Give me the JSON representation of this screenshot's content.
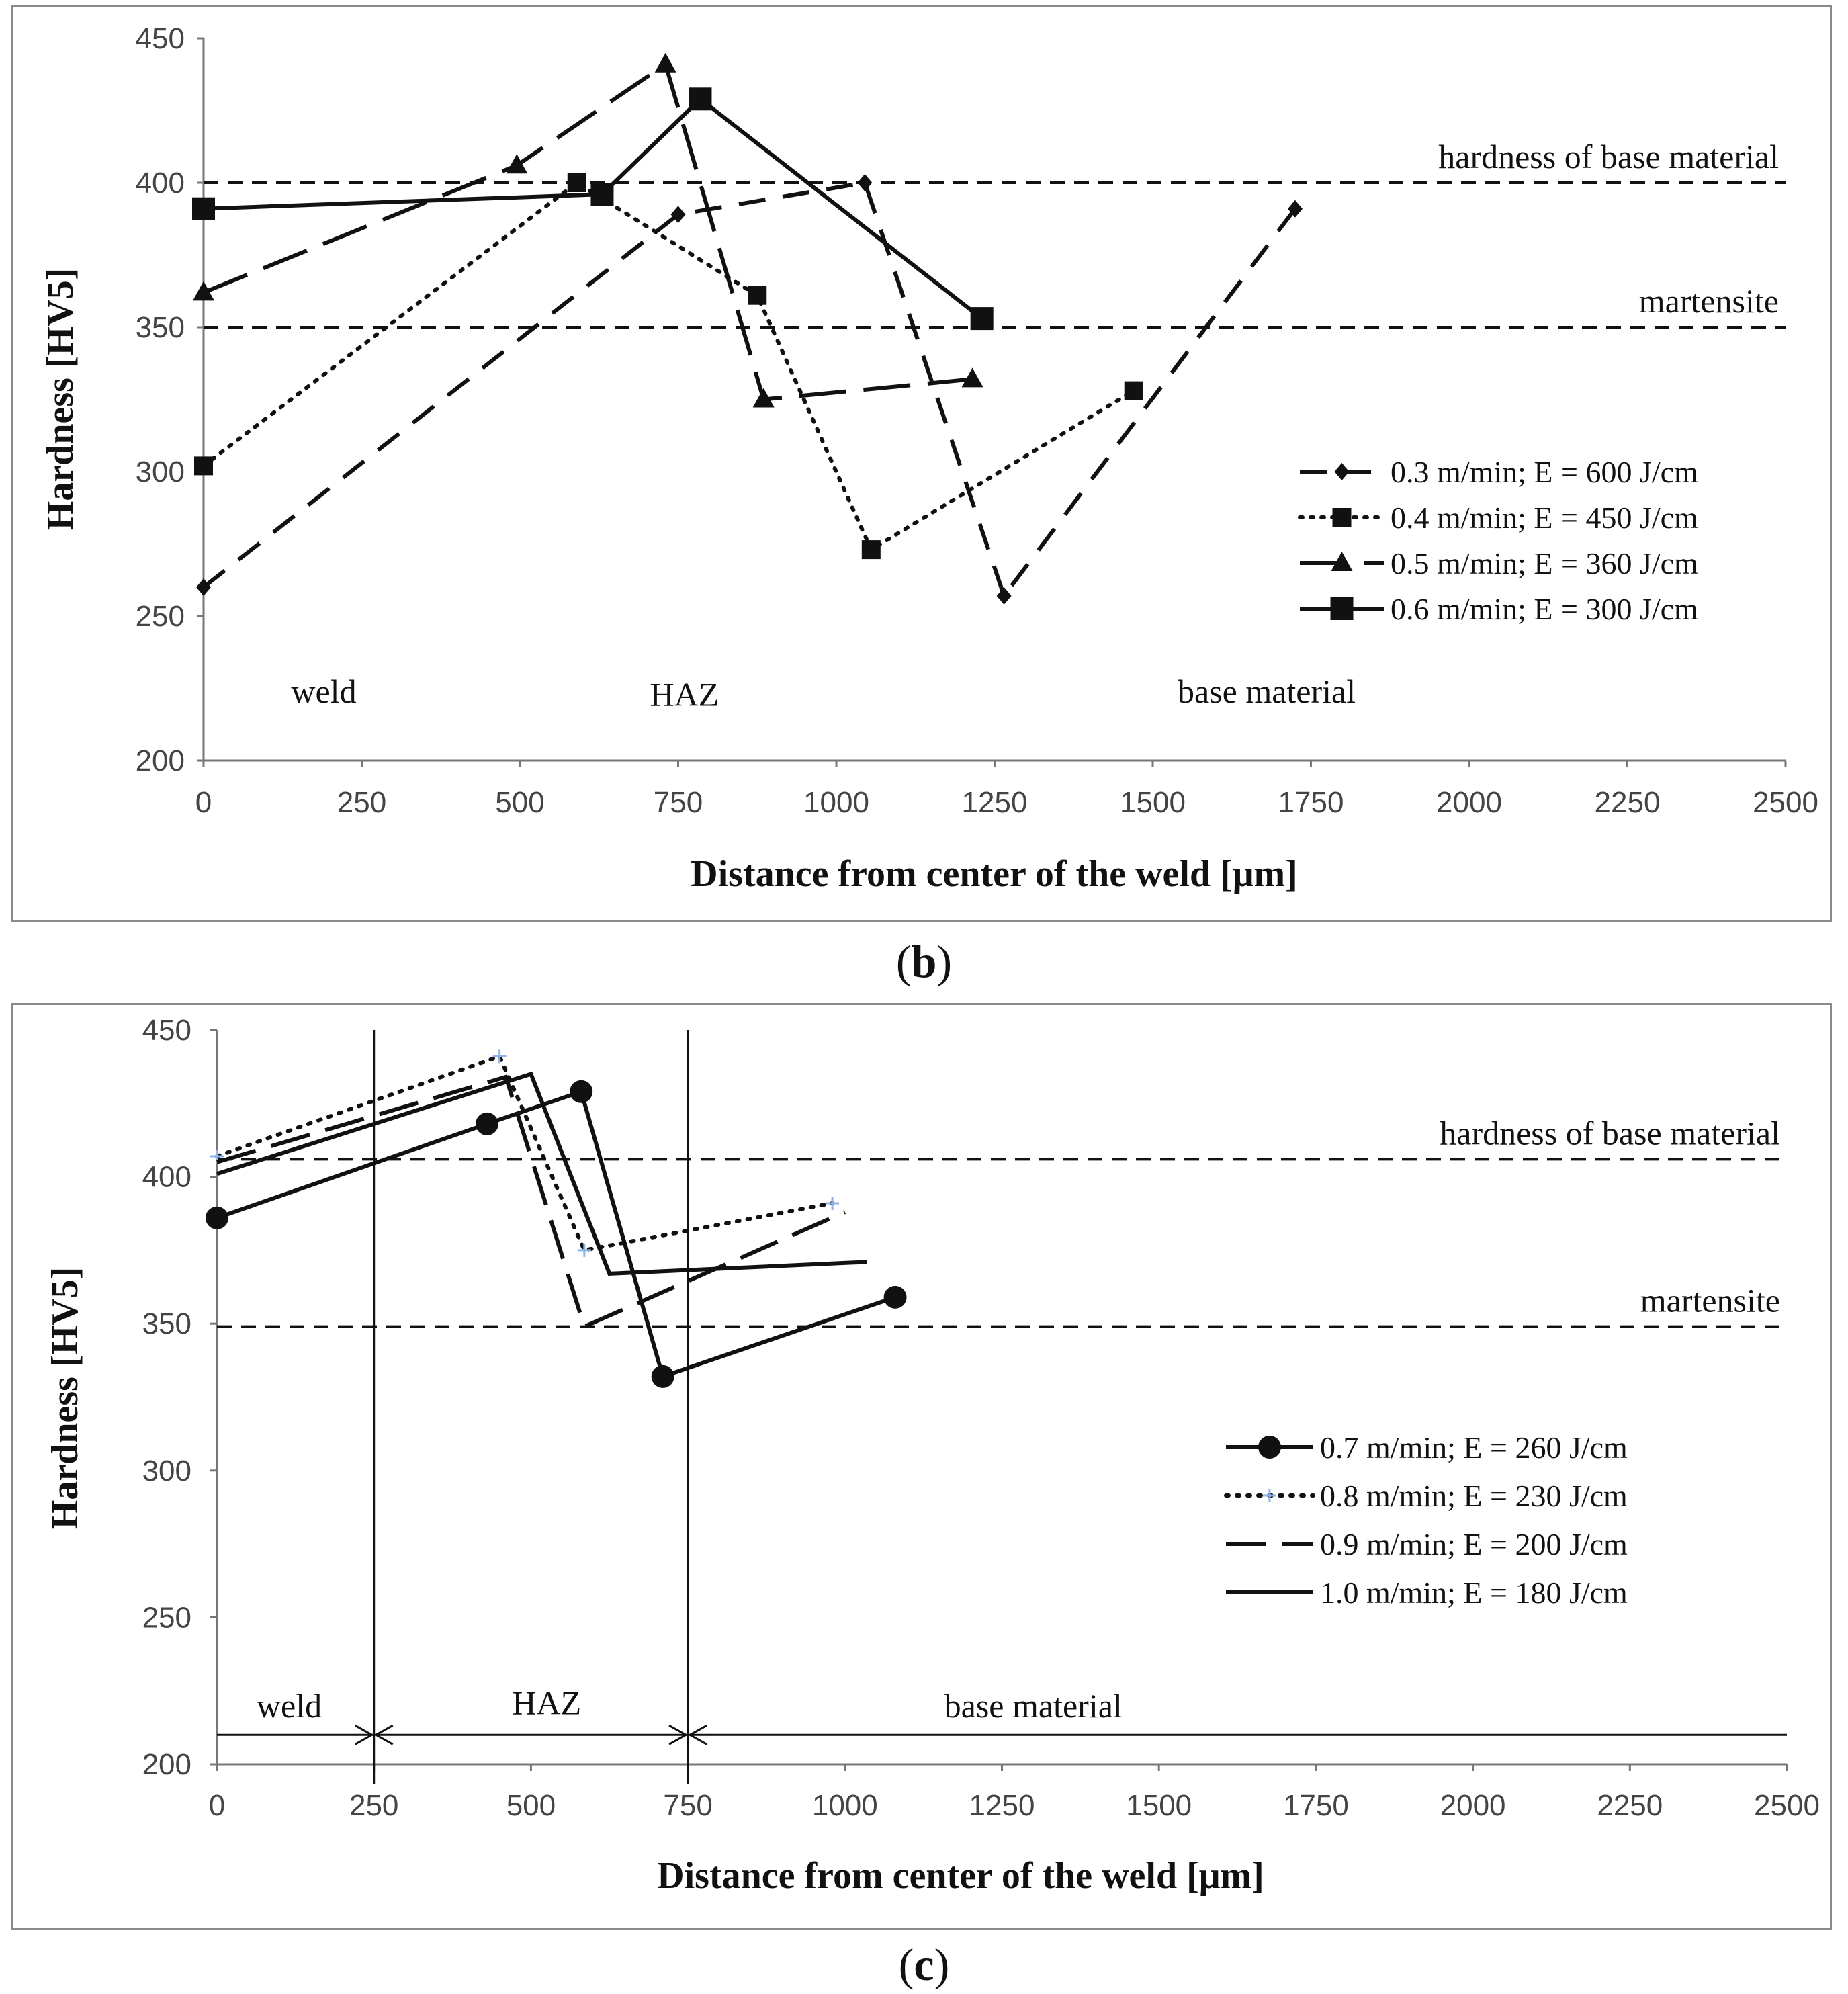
{
  "chart_data": [
    {
      "id": "b",
      "type": "line",
      "caption_letter": "b",
      "xlabel": "Distance from center of the weld [μm]",
      "ylabel": "Hardness [HV5]",
      "xlim": [
        0,
        2500
      ],
      "ylim": [
        200,
        450
      ],
      "xticks": [
        "0",
        "250",
        "500",
        "750",
        "1000",
        "1250",
        "1500",
        "1750",
        "2000",
        "2250",
        "2500"
      ],
      "yticks": [
        "200",
        "250",
        "300",
        "350",
        "400",
        "450"
      ],
      "reference_lines": [
        {
          "label": "hardness of base material",
          "value": 400
        },
        {
          "label": "martensite",
          "value": 350
        }
      ],
      "zone_labels": [
        {
          "label": "weld",
          "x": 190,
          "y": 220
        },
        {
          "label": "HAZ",
          "x": 760,
          "y": 219
        },
        {
          "label": "base material",
          "x": 1680,
          "y": 220
        }
      ],
      "series": [
        {
          "name": "0.3 m/min; E = 600 J/cm",
          "marker": "diamond",
          "dash": "40,26",
          "x": [
            0,
            750,
            1045,
            1265,
            1725
          ],
          "y": [
            260,
            389,
            400,
            257,
            391
          ]
        },
        {
          "name": "0.4 m/min; E = 450 J/cm",
          "marker": "square",
          "dash": "4,12",
          "x": [
            0,
            590,
            875,
            1055,
            1470
          ],
          "y": [
            302,
            400,
            361,
            273,
            328
          ]
        },
        {
          "name": "0.5 m/min; E = 360 J/cm",
          "marker": "triangle",
          "dash": "70,26",
          "x": [
            0,
            495,
            730,
            885,
            1215
          ],
          "y": [
            362,
            406,
            441,
            325,
            332
          ]
        },
        {
          "name": "0.6 m/min; E = 300 J/cm",
          "marker": "square-large",
          "dash": "",
          "x": [
            0,
            630,
            785,
            1230
          ],
          "y": [
            391,
            396,
            429,
            353
          ]
        }
      ]
    },
    {
      "id": "c",
      "type": "line",
      "caption_letter": "c",
      "xlabel": "Distance from center of the weld [μm]",
      "ylabel": "Hardness [HV5]",
      "xlim": [
        0,
        2500
      ],
      "ylim": [
        200,
        450
      ],
      "xticks": [
        "0",
        "250",
        "500",
        "750",
        "1000",
        "1250",
        "1500",
        "1750",
        "2000",
        "2250",
        "2500"
      ],
      "yticks": [
        "200",
        "250",
        "300",
        "350",
        "400",
        "450"
      ],
      "reference_lines": [
        {
          "label": "hardness of base material",
          "value": 406
        },
        {
          "label": "martensite",
          "value": 349
        }
      ],
      "zone_boundaries": [
        250,
        750
      ],
      "zone_labels": [
        {
          "label": "weld",
          "x": 115,
          "y": 216
        },
        {
          "label": "HAZ",
          "x": 525,
          "y": 217
        },
        {
          "label": "base material",
          "x": 1300,
          "y": 216
        }
      ],
      "zone_arrow_y": 210,
      "series": [
        {
          "name": "0.7 m/min; E = 260 J/cm",
          "marker": "circle",
          "dash": "",
          "x": [
            0,
            430,
            580,
            710,
            1080
          ],
          "y": [
            386,
            418,
            429,
            332,
            359
          ]
        },
        {
          "name": "0.8 m/min; E = 230 J/cm",
          "marker": "plus",
          "dash": "4,12",
          "x": [
            0,
            450,
            585,
            980
          ],
          "y": [
            407,
            441,
            375,
            391
          ]
        },
        {
          "name": "0.9 m/min; E = 200 J/cm",
          "marker": "none",
          "dash": "60,24",
          "x": [
            0,
            460,
            585,
            1000
          ],
          "y": [
            405,
            434,
            349,
            388
          ]
        },
        {
          "name": "1.0 m/min; E = 180 J/cm",
          "marker": "none",
          "dash": "",
          "x": [
            0,
            500,
            625,
            1035
          ],
          "y": [
            401,
            435,
            367,
            371
          ]
        }
      ]
    }
  ]
}
